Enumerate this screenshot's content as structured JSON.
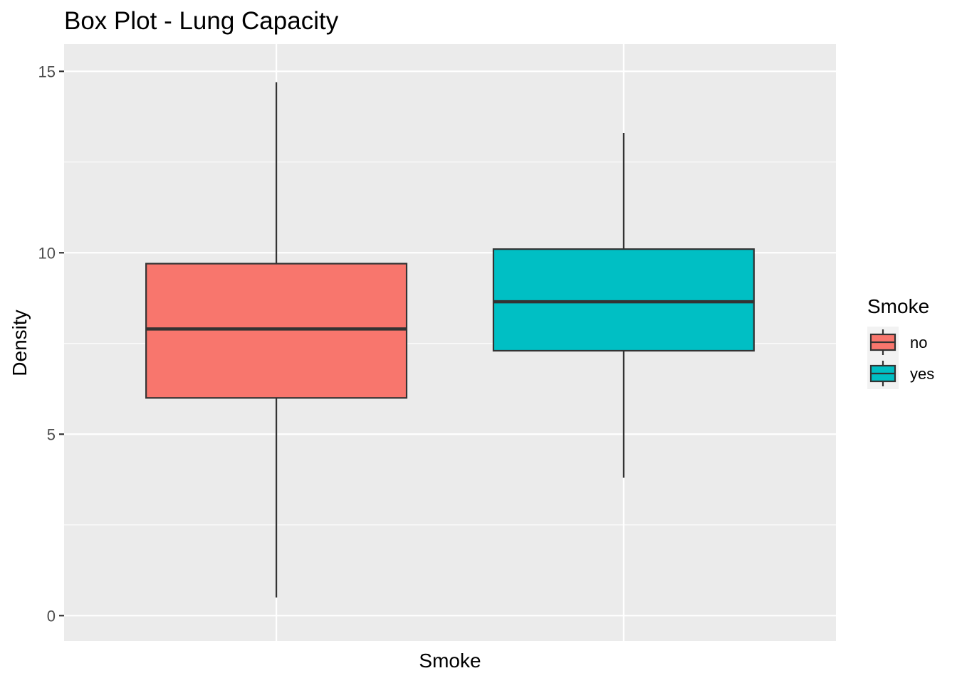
{
  "chart_data": {
    "type": "boxplot",
    "title": "Box Plot - Lung Capacity",
    "xlabel": "Smoke",
    "ylabel": "Density",
    "ylim": [
      -0.7,
      15.75
    ],
    "y_ticks": [
      0,
      5,
      10,
      15
    ],
    "y_minor_ticks": [
      2.5,
      7.5,
      12.5
    ],
    "grid": true,
    "legend": {
      "title": "Smoke",
      "placement": "right"
    },
    "colors": {
      "panel_bg": "#ebebeb",
      "grid": "#ffffff",
      "box_outline": "#333333"
    },
    "series": [
      {
        "name": "no",
        "color": "#f8766d",
        "min": 0.5,
        "q1": 6.0,
        "median": 7.9,
        "q3": 9.7,
        "max": 14.7
      },
      {
        "name": "yes",
        "color": "#00bfc4",
        "min": 3.8,
        "q1": 7.3,
        "median": 8.65,
        "q3": 10.1,
        "max": 13.3
      }
    ]
  }
}
